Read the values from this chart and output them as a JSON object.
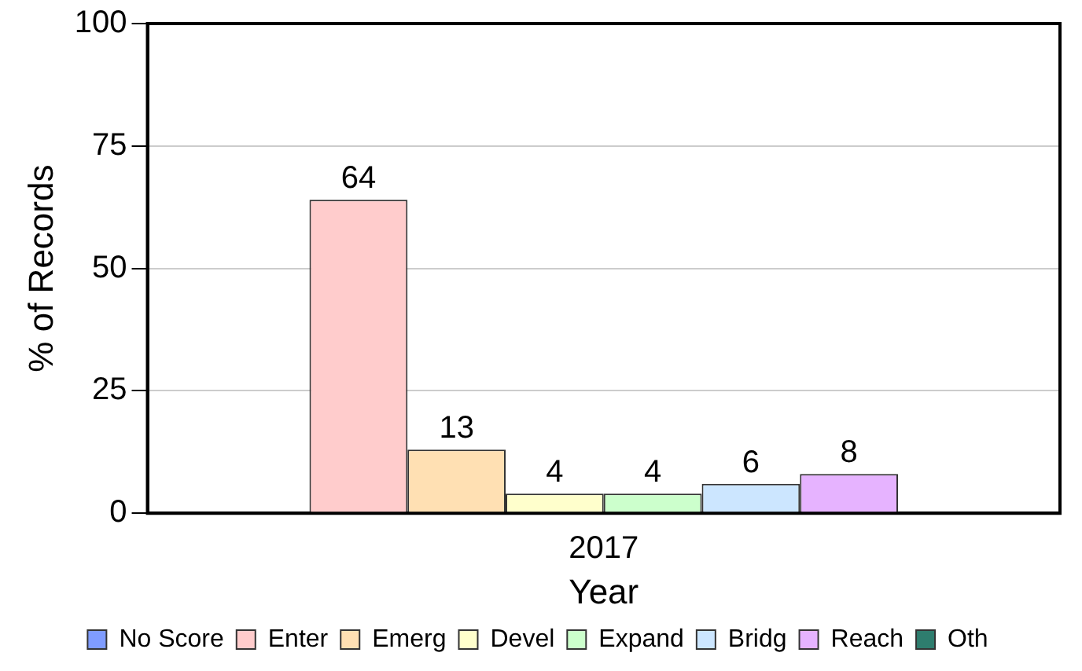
{
  "chart_data": {
    "type": "bar",
    "xlabel": "Year",
    "ylabel": "% of Records",
    "categories": [
      "2017"
    ],
    "series": [
      {
        "name": "No Score",
        "color": "#7f9cff",
        "values": [
          null
        ]
      },
      {
        "name": "Enter",
        "color": "#ffcccc",
        "values": [
          64
        ]
      },
      {
        "name": "Emerg",
        "color": "#ffe0b3",
        "values": [
          13
        ]
      },
      {
        "name": "Devel",
        "color": "#ffffcc",
        "values": [
          4
        ]
      },
      {
        "name": "Expand",
        "color": "#ccffcc",
        "values": [
          4
        ]
      },
      {
        "name": "Bridg",
        "color": "#cce6ff",
        "values": [
          6
        ]
      },
      {
        "name": "Reach",
        "color": "#e6b3ff",
        "values": [
          8
        ]
      },
      {
        "name": "Oth",
        "color": "#2e7d6e",
        "values": [
          null
        ]
      }
    ],
    "ylim": [
      0,
      100
    ],
    "yticks": [
      0,
      25,
      50,
      75,
      100
    ],
    "grid": "y",
    "legend": "bottom",
    "data_labels": true
  }
}
